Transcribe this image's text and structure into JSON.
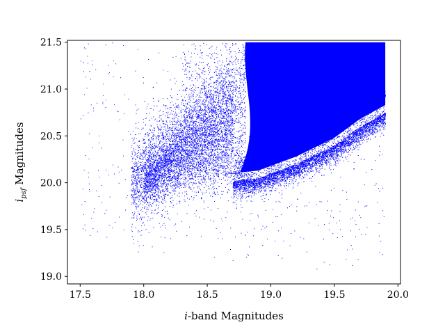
{
  "chart_data": {
    "type": "scatter",
    "title": "",
    "xlabel": {
      "italic": "i",
      "rest": "-band Magnitudes"
    },
    "ylabel": {
      "italic": "i",
      "sub": "psf",
      "rest": " Magnitudes"
    },
    "xlim": [
      17.4,
      20.02
    ],
    "ylim": [
      18.92,
      21.52
    ],
    "xticks": [
      17.5,
      18.0,
      18.5,
      19.0,
      19.5,
      20.0
    ],
    "xtick_labels": [
      "17.5",
      "18.0",
      "18.5",
      "19.0",
      "19.5",
      "20.0"
    ],
    "yticks": [
      19.0,
      19.5,
      20.0,
      20.5,
      21.0,
      21.5
    ],
    "ytick_labels": [
      "19.0",
      "19.5",
      "20.0",
      "20.5",
      "21.0",
      "21.5"
    ],
    "grid": false,
    "marker_color": "#0000ff",
    "x_range_of_points": [
      17.5,
      19.9
    ],
    "y_range_of_points": [
      19.05,
      21.5
    ],
    "dense_region": {
      "description_points": [
        {
          "x": 18.55,
          "y": 20.0
        },
        {
          "x": 18.9,
          "y": 20.05
        },
        {
          "x": 19.2,
          "y": 20.2
        },
        {
          "x": 19.5,
          "y": 20.4
        },
        {
          "x": 19.7,
          "y": 20.6
        },
        {
          "x": 19.9,
          "y": 20.75
        }
      ],
      "upper_bound_y": 21.5,
      "left_edge_x_at_top": 18.7,
      "right_edge_x": 19.9
    }
  }
}
